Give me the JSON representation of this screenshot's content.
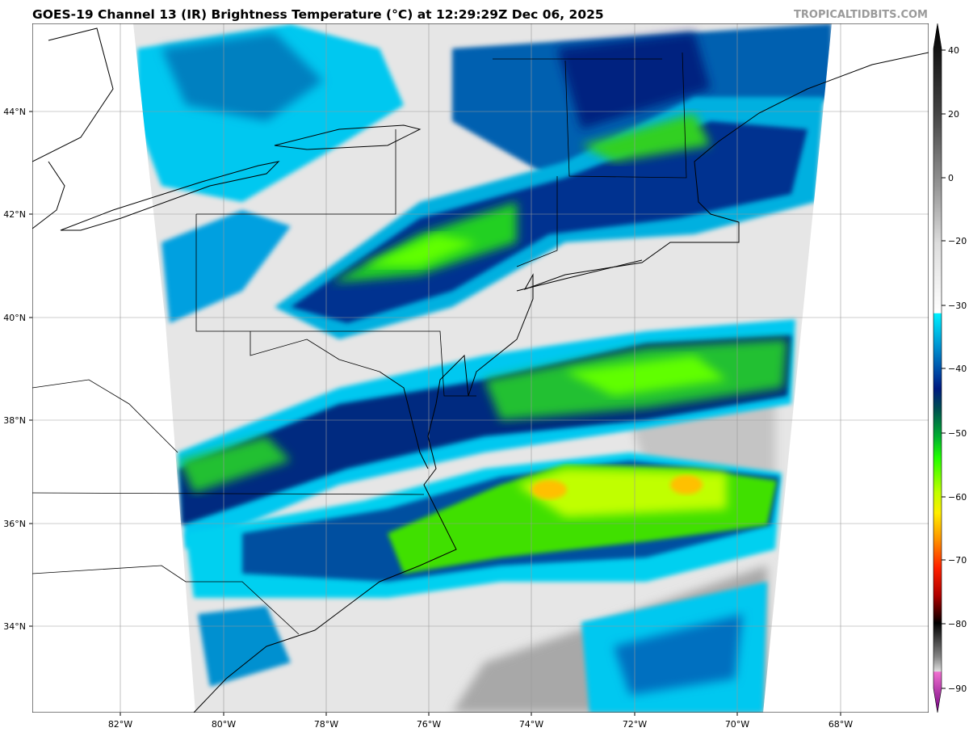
{
  "title": "GOES-19 Channel 13 (IR) Brightness Temperature (°C) at 12:29:29Z Dec 06, 2025",
  "brand": "TROPICALTIDBITS.COM",
  "map": {
    "lat_ticks": [
      "44°N",
      "42°N",
      "40°N",
      "38°N",
      "36°N",
      "34°N"
    ],
    "lon_ticks": [
      "82°W",
      "80°W",
      "78°W",
      "76°W",
      "74°W",
      "72°W",
      "70°W",
      "68°W"
    ],
    "gridlines": true
  },
  "colorbar": {
    "ticks": [
      "40",
      "20",
      "0",
      "−20",
      "−30",
      "−40",
      "−50",
      "−60",
      "−70",
      "−80",
      "−90"
    ],
    "colors": {
      "cyan": "#00f0ff",
      "blue": "#0070c0",
      "navy": "#001a80",
      "dark_green": "#006040",
      "green": "#00e000",
      "lime": "#80ff00",
      "yellow": "#ffff00",
      "orange": "#ff9000",
      "red": "#ff0000",
      "dark_red": "#600000",
      "magenta": "#e060c0",
      "purple": "#800080"
    }
  }
}
